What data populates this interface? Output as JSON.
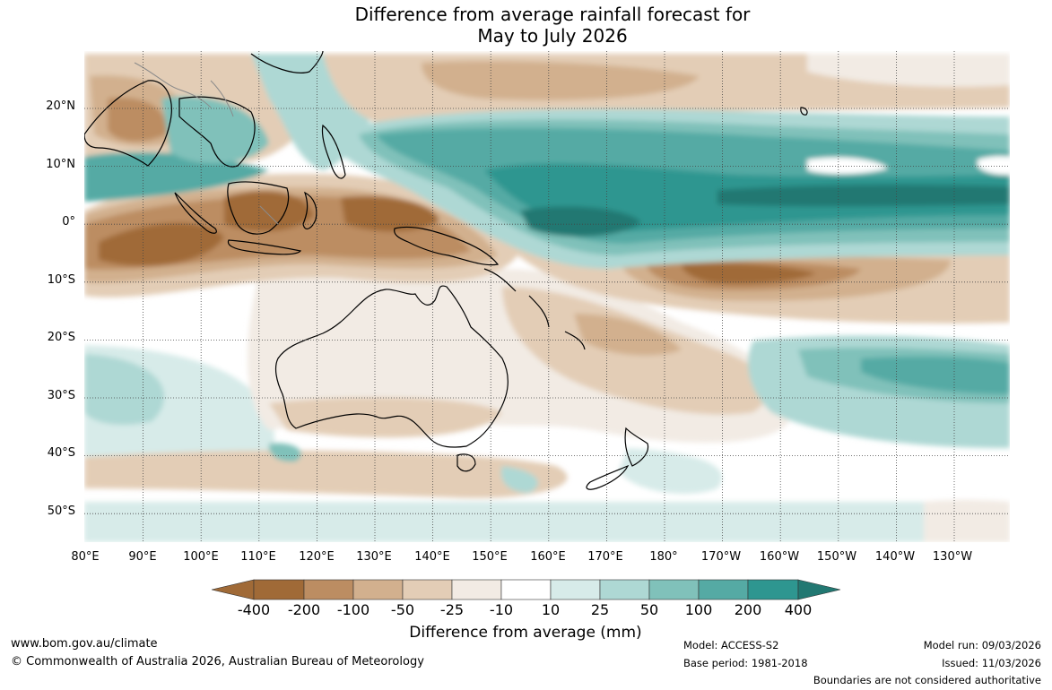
{
  "title": {
    "line1": "Difference from average rainfall forecast for",
    "line2": "May to July 2026"
  },
  "map": {
    "lat_labels": [
      "20°N",
      "10°N",
      "0°",
      "10°S",
      "20°S",
      "30°S",
      "40°S",
      "50°S"
    ],
    "lon_labels": [
      "80°E",
      "90°E",
      "100°E",
      "110°E",
      "120°E",
      "130°E",
      "140°E",
      "150°E",
      "160°E",
      "170°E",
      "180°",
      "170°W",
      "160°W",
      "150°W",
      "140°W",
      "130°W"
    ],
    "colors": {
      "dry_400": "#a06a37",
      "dry_200": "#bc8d62",
      "dry_100": "#d2b08e",
      "dry_50": "#e3cdb6",
      "dry_25": "#f2ebe4",
      "neutral": "#ffffff",
      "wet_10": "#d7ebe9",
      "wet_25": "#aed8d4",
      "wet_50": "#80c1ba",
      "wet_100": "#55aaa4",
      "wet_200": "#2e9690",
      "wet_400": "#227872",
      "land_outline": "#000000",
      "border": "#8a8a8a",
      "grid": "#444444"
    }
  },
  "colorbar": {
    "ticks": [
      "-400",
      "-200",
      "-100",
      "-50",
      "-25",
      "-10",
      "10",
      "25",
      "50",
      "100",
      "200",
      "400"
    ],
    "title": "Difference from average (mm)"
  },
  "footer": {
    "website": "www.bom.gov.au/climate",
    "copyright": "© Commonwealth of Australia 2026, Australian Bureau of Meteorology",
    "model": "Model: ACCESS-S2",
    "base_period": "Base period: 1981-2018",
    "model_run": "Model run: 09/03/2026",
    "issued": "Issued: 11/03/2026",
    "disclaimer": "Boundaries are not considered authoritative"
  }
}
